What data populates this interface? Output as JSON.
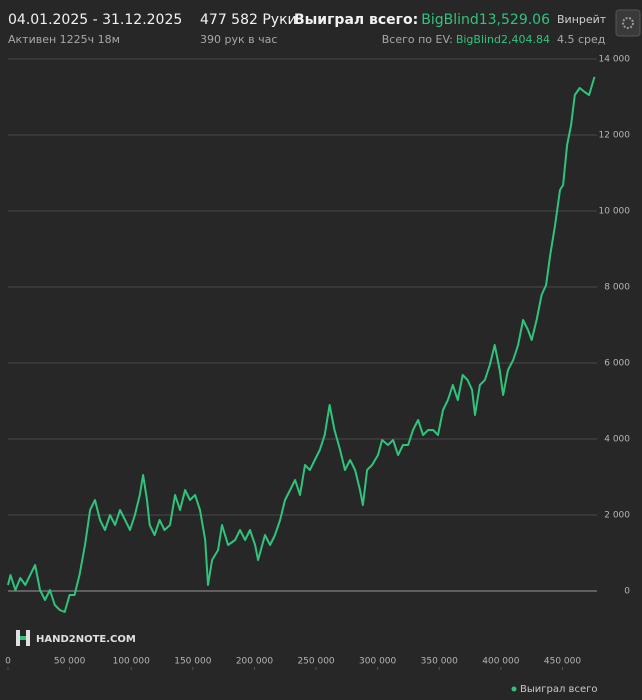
{
  "header": {
    "date_range": "04.01.2025 - 31.12.2025",
    "active": "Активен 1225ч 18м",
    "hands": "477 582 Руки",
    "hands_per_hour": "390 рук в час",
    "won_label": "Выиграл всего:",
    "won_value": "BigBlind13,529.06",
    "ev_label": "Всего по EV:",
    "ev_value": "BigBlind2,404.84",
    "winrate_label": "Винрейт",
    "winrate_value": "4.5 сред"
  },
  "chart_data": {
    "type": "line",
    "watermark": "HAND2NOTE.COM",
    "legend": "bottom-right",
    "grid": true,
    "x": [
      0,
      2000,
      6000,
      10000,
      14000,
      18000,
      22000,
      26000,
      30000,
      34000,
      38000,
      42000,
      46000,
      50000,
      54000,
      58000,
      62500,
      66600,
      70600,
      74700,
      78700,
      82800,
      86900,
      90900,
      95000,
      99000,
      103000,
      107000,
      109600,
      112800,
      115000,
      119000,
      123000,
      127000,
      131500,
      135600,
      139600,
      143700,
      147700,
      151800,
      155800,
      160000,
      162300,
      165600,
      170500,
      173700,
      178600,
      184300,
      188300,
      192400,
      196400,
      200500,
      203000,
      208600,
      212700,
      216700,
      220800,
      224800,
      228900,
      233000,
      237000,
      241000,
      245000,
      249000,
      253000,
      257000,
      261000,
      265000,
      269500,
      273500,
      277600,
      281700,
      285700,
      288000,
      291400,
      295500,
      300300,
      303600,
      308400,
      312500,
      316600,
      320600,
      324700,
      328700,
      332800,
      336900,
      341000,
      345000,
      349000,
      353000,
      357000,
      361000,
      365000,
      369000,
      373000,
      376600,
      379000,
      383000,
      387000,
      391000,
      395000,
      399000,
      401800,
      405800,
      410000,
      414000,
      418000,
      422000,
      425000,
      429000,
      433000,
      436700,
      440000,
      444000,
      448000,
      450500,
      453700,
      457000,
      460000,
      464000,
      468000,
      471600,
      476000
    ],
    "series": [
      {
        "name": "Выиграл всего",
        "color": "#2fc47c",
        "values": [
          158,
          421,
          26,
          342,
          158,
          421,
          684,
          26,
          -237,
          26,
          -368,
          -500,
          -553,
          -105,
          -105,
          421,
          1211,
          2132,
          2395,
          1868,
          1605,
          2000,
          1737,
          2132,
          1868,
          1605,
          2000,
          2526,
          3053,
          2395,
          1737,
          1474,
          1868,
          1605,
          1737,
          2526,
          2132,
          2658,
          2395,
          2526,
          2132,
          1342,
          158,
          816,
          1079,
          1737,
          1211,
          1342,
          1605,
          1342,
          1605,
          1211,
          816,
          1474,
          1211,
          1474,
          1868,
          2395,
          2658,
          2921,
          2526,
          3316,
          3184,
          3447,
          3711,
          4105,
          4895,
          4237,
          3711,
          3184,
          3447,
          3184,
          2658,
          2263,
          3184,
          3316,
          3579,
          3974,
          3842,
          3974,
          3579,
          3842,
          3842,
          4237,
          4500,
          4105,
          4237,
          4237,
          4105,
          4763,
          5026,
          5421,
          5026,
          5684,
          5553,
          5289,
          4632,
          5421,
          5553,
          5947,
          6474,
          5816,
          5158,
          5816,
          6079,
          6474,
          7132,
          6868,
          6605,
          7132,
          7789,
          8053,
          8842,
          9632,
          10553,
          10684,
          11737,
          12263,
          13053,
          13237,
          13132,
          13053,
          13529.06
        ]
      }
    ],
    "xlim": [
      0,
      478000
    ],
    "ylim": [
      -2000,
      14000
    ],
    "xticks": [
      0,
      {
        "value": 50000,
        "label": "50 000"
      },
      {
        "value": 100000,
        "label": "100 000"
      },
      {
        "value": 150000,
        "label": "150 000"
      },
      {
        "value": 200000,
        "label": "200 000"
      },
      {
        "value": 250000,
        "label": "250 000"
      },
      {
        "value": 300000,
        "label": "300 000"
      },
      {
        "value": 350000,
        "label": "350 000"
      },
      {
        "value": 400000,
        "label": "400 000"
      },
      {
        "value": 450000,
        "label": "450 000"
      }
    ],
    "yticks": [
      0,
      {
        "value": 2000,
        "label": "2 000"
      },
      {
        "value": 4000,
        "label": "4 000"
      },
      {
        "value": 6000,
        "label": "6 000"
      },
      {
        "value": 8000,
        "label": "8 000"
      },
      {
        "value": 10000,
        "label": "10 000"
      },
      {
        "value": 12000,
        "label": "12 000"
      },
      {
        "value": 14000,
        "label": "14 000"
      }
    ]
  }
}
